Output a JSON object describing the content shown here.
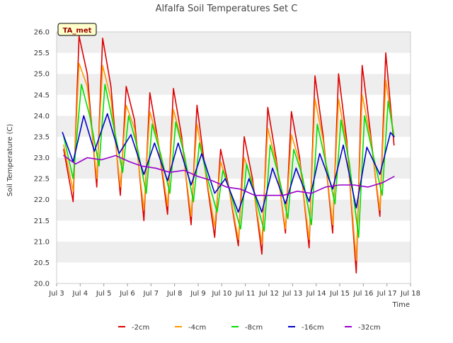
{
  "chart_data": {
    "type": "line",
    "title": "Alfalfa Soil Temperatures Set C",
    "xlabel": "Time",
    "ylabel": "Soil Temperature (C)",
    "annotation": "TA_met",
    "xlim": [
      3,
      18
    ],
    "ylim": [
      20.0,
      26.0
    ],
    "x_ticks": [
      3,
      4,
      5,
      6,
      7,
      8,
      9,
      10,
      11,
      12,
      13,
      14,
      15,
      16,
      17,
      18
    ],
    "x_tick_labels": [
      "Jul 3",
      "Jul 4",
      "Jul 5",
      "Jul 6",
      "Jul 7",
      "Jul 8",
      "Jul 9",
      "Jul 10",
      "Jul 11",
      "Jul 12",
      "Jul 13",
      "Jul 14",
      "Jul 15",
      "Jul 16",
      "Jul 17",
      "Jul 18"
    ],
    "y_ticks": [
      20.0,
      20.5,
      21.0,
      21.5,
      22.0,
      22.5,
      23.0,
      23.5,
      24.0,
      24.5,
      25.0,
      25.5,
      26.0
    ],
    "y_tick_labels": [
      "20.0",
      "20.5",
      "21.0",
      "21.5",
      "22.0",
      "22.5",
      "23.0",
      "23.5",
      "24.0",
      "24.5",
      "25.0",
      "25.5",
      "26.0"
    ],
    "grid": "horizontal bands",
    "legend_position": "bottom",
    "x_unit": "day of July",
    "series": [
      {
        "name": "-2cm",
        "color": "#dd0000",
        "x": [
          3.3,
          3.7,
          3.95,
          4.3,
          4.7,
          4.95,
          5.3,
          5.7,
          5.95,
          6.3,
          6.7,
          6.95,
          7.3,
          7.7,
          7.95,
          8.3,
          8.7,
          8.95,
          9.3,
          9.7,
          9.95,
          10.3,
          10.7,
          10.95,
          11.3,
          11.7,
          11.95,
          12.3,
          12.7,
          12.95,
          13.3,
          13.7,
          13.95,
          14.3,
          14.7,
          14.95,
          15.3,
          15.7,
          15.95,
          16.3,
          16.7,
          16.95,
          17.3
        ],
        "y": [
          23.2,
          21.95,
          25.9,
          25.0,
          22.3,
          25.85,
          24.7,
          22.1,
          24.7,
          23.9,
          21.5,
          24.55,
          23.4,
          21.65,
          24.65,
          23.5,
          21.4,
          24.25,
          22.7,
          21.1,
          23.2,
          22.3,
          20.9,
          23.5,
          22.5,
          20.7,
          24.2,
          23.0,
          21.2,
          24.1,
          23.0,
          20.85,
          24.95,
          23.5,
          21.2,
          25.0,
          23.4,
          20.25,
          25.2,
          23.6,
          21.6,
          25.5,
          23.3
        ]
      },
      {
        "name": "-4cm",
        "color": "#ff9900",
        "x": [
          3.3,
          3.7,
          3.95,
          4.3,
          4.7,
          4.95,
          5.3,
          5.7,
          5.95,
          6.3,
          6.7,
          6.95,
          7.3,
          7.7,
          7.95,
          8.3,
          8.7,
          8.95,
          9.3,
          9.7,
          9.95,
          10.3,
          10.7,
          10.95,
          11.3,
          11.7,
          11.95,
          12.3,
          12.7,
          12.95,
          13.3,
          13.7,
          13.95,
          14.3,
          14.7,
          14.95,
          15.3,
          15.7,
          15.95,
          16.3,
          16.7,
          16.95,
          17.3
        ],
        "y": [
          23.3,
          22.2,
          25.25,
          24.7,
          22.5,
          25.2,
          24.4,
          22.3,
          24.25,
          23.7,
          21.75,
          24.1,
          23.4,
          21.85,
          24.15,
          23.4,
          21.6,
          23.8,
          22.7,
          21.35,
          22.9,
          22.3,
          21.05,
          23.0,
          22.4,
          20.95,
          23.7,
          22.9,
          21.3,
          23.55,
          22.9,
          21.05,
          24.4,
          23.4,
          21.4,
          24.4,
          23.3,
          20.55,
          24.5,
          23.5,
          21.75,
          24.85,
          23.5
        ]
      },
      {
        "name": "-8cm",
        "color": "#00dd00",
        "x": [
          3.3,
          3.7,
          4.05,
          4.4,
          4.8,
          5.05,
          5.4,
          5.8,
          6.05,
          6.4,
          6.8,
          7.05,
          7.4,
          7.8,
          8.05,
          8.4,
          8.8,
          9.05,
          9.4,
          9.8,
          10.05,
          10.4,
          10.8,
          11.05,
          11.4,
          11.8,
          12.05,
          12.4,
          12.8,
          13.05,
          13.4,
          13.8,
          14.05,
          14.4,
          14.8,
          15.05,
          15.4,
          15.8,
          16.05,
          16.4,
          16.8,
          17.05,
          17.3
        ],
        "y": [
          23.5,
          22.5,
          24.75,
          24.0,
          22.8,
          24.75,
          23.8,
          22.65,
          24.0,
          23.3,
          22.15,
          23.8,
          23.1,
          22.15,
          23.85,
          23.1,
          21.95,
          23.35,
          22.5,
          21.7,
          22.7,
          22.1,
          21.3,
          22.85,
          22.1,
          21.25,
          23.3,
          22.6,
          21.55,
          23.2,
          22.6,
          21.4,
          23.8,
          22.9,
          21.9,
          23.9,
          22.9,
          21.1,
          24.0,
          23.1,
          22.1,
          24.35,
          23.5
        ]
      },
      {
        "name": "-16cm",
        "color": "#0000cc",
        "x": [
          3.25,
          3.7,
          4.15,
          4.6,
          5.15,
          5.65,
          6.15,
          6.7,
          7.15,
          7.7,
          8.15,
          8.7,
          9.15,
          9.7,
          10.15,
          10.7,
          11.15,
          11.7,
          12.15,
          12.7,
          13.15,
          13.7,
          14.15,
          14.7,
          15.15,
          15.7,
          16.15,
          16.7,
          17.15,
          17.3
        ],
        "y": [
          23.6,
          22.9,
          24.0,
          23.15,
          24.05,
          23.1,
          23.55,
          22.6,
          23.35,
          22.45,
          23.35,
          22.35,
          23.1,
          22.15,
          22.5,
          21.7,
          22.5,
          21.7,
          22.75,
          21.9,
          22.75,
          21.95,
          23.1,
          22.25,
          23.3,
          21.8,
          23.25,
          22.6,
          23.6,
          23.5
        ]
      },
      {
        "name": "-32cm",
        "color": "#9900cc",
        "x": [
          3.3,
          3.8,
          4.3,
          4.9,
          5.5,
          6.1,
          6.6,
          7.2,
          7.8,
          8.4,
          9.0,
          9.6,
          10.2,
          10.8,
          11.4,
          12.0,
          12.6,
          13.2,
          13.8,
          14.4,
          15.0,
          15.6,
          16.2,
          16.8,
          17.3
        ],
        "y": [
          23.05,
          22.85,
          23.0,
          22.95,
          23.05,
          22.9,
          22.8,
          22.75,
          22.65,
          22.7,
          22.55,
          22.45,
          22.3,
          22.25,
          22.1,
          22.1,
          22.1,
          22.2,
          22.15,
          22.3,
          22.35,
          22.35,
          22.3,
          22.4,
          22.55
        ]
      }
    ]
  }
}
